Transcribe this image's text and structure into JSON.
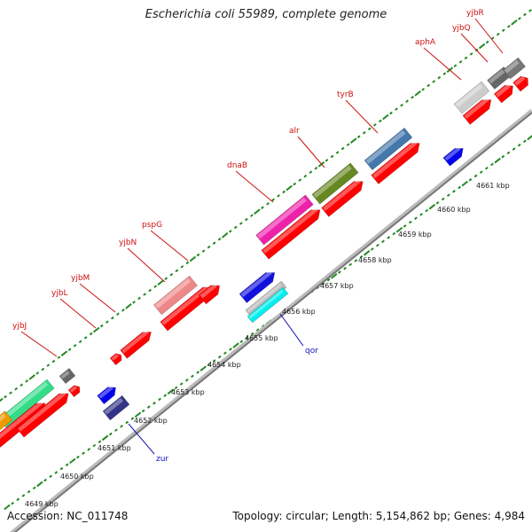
{
  "title": "Escherichia coli 55989, complete genome",
  "accession": "Accession: NC_011748",
  "topology": "Topology: circular; Length: 5,154,862 bp; Genes: 4,984",
  "colors": {
    "forward_gene": "#ff0000",
    "reverse_gene": "#0000ee",
    "backbone": "#888888",
    "ticks": "#228822",
    "top_label": "#cc1111",
    "bottom_label": "#1111bb"
  },
  "kbp_labels": [
    "4649 kbp",
    "4650 kbp",
    "4651 kbp",
    "4652 kbp",
    "4653 kbp",
    "4654 kbp",
    "4655 kbp",
    "4656 kbp",
    "4657 kbp",
    "4658 kbp",
    "4659 kbp",
    "4660 kbp",
    "4661 kbp"
  ],
  "top_gene_labels": [
    "yjbJ",
    "yjbL",
    "yjbM",
    "yjbN",
    "pspG",
    "dnaB",
    "alr",
    "tyrB",
    "aphA",
    "yjbQ",
    "yjbR"
  ],
  "bottom_gene_labels": [
    "zur",
    "qor"
  ]
}
